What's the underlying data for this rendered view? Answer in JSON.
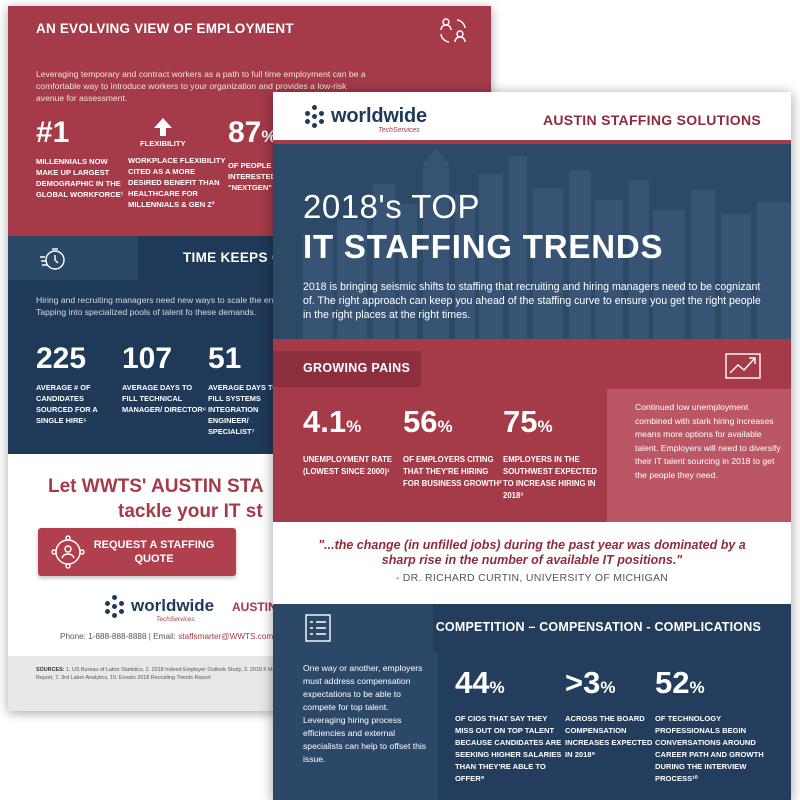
{
  "back": {
    "header_title": "AN EVOLVING VIEW OF EMPLOYMENT",
    "intro": "Leveraging temporary and contract workers as a path to full time employment can be a comfortable way to introduce workers to your organization and provides a low-risk avenue for assessment.",
    "stats": [
      {
        "num": "#1",
        "label": "MILLENNIALS NOW MAKE UP LARGEST DEMOGRAPHIC IN THE GLOBAL WORKFORCE¹"
      },
      {
        "title": "FLEXIBILITY",
        "label": "WORKPLACE FLEXIBILITY CITED AS A MORE DESIRED BENEFIT THAN HEALTHCARE FOR MILLENNIALS & GEN Z²"
      },
      {
        "num": "87",
        "pct": "%",
        "label": "OF PEOPLE IN THE U.S. INTERESTED IN GIG OR \"NEXTGEN\" WO"
      }
    ],
    "time_title": "TIME KEEPS ON TI",
    "time_intro": "Hiring and recruiting managers need new ways to scale the en sourcing new hires. Tapping into specialized pools of talent fo these demands.",
    "time_stats": [
      {
        "num": "225",
        "label": "AVERAGE # OF CANDIDATES SOURCED FOR A SINGLE HIRE⁵"
      },
      {
        "num": "107",
        "label": "AVERAGE DAYS TO FILL TECHNICAL MANAGER/ DIRECTOR⁶"
      },
      {
        "num": "51",
        "label": "AVERAGE DAYS TO FILL SYSTEMS INTEGRATION ENGINEER/ SPECIALIST⁷"
      }
    ],
    "cta_line1": "Let WWTS' AUSTIN STA",
    "cta_line2": "tackle your IT st",
    "button_label": "REQUEST A STAFFING QUOTE",
    "logo_text": "worldwide",
    "logo_sub": "TechServices",
    "austin_text": "AUSTIN",
    "phone": "Phone: 1-888-888-8888",
    "email_label": "| Email:",
    "email": "staffsmarter@WWTS.com",
    "sources_label": "SOURCES:",
    "sources_text": "1. US Bureau of Labor Statistics, 2. 2018 Indeed Employer Outlook Study, 3. 2018 F Management Report, 5. 2018 Work for Me Study, 6. Manpower NextGen Work Report, 7. 3rd Labor Analytics, 10. Envato 2018 Recruiting Trends Report"
  },
  "front": {
    "logo_text": "worldwide",
    "logo_sub": "TechServices",
    "header": "AUSTIN STAFFING SOLUTIONS",
    "title1": "2018's TOP",
    "title2": "IT STAFFING TRENDS",
    "intro": "2018 is bringing seismic shifts to staffing that recruiting and hiring managers need to be cognizant of. The right approach can keep you ahead of the staffing curve to ensure you get the right people in the right places at the right times.",
    "growing": {
      "title": "GROWING PAINS",
      "stats": [
        {
          "num": "4.1",
          "pct": "%",
          "label": "UNEMPLOYMENT RATE (LOWEST SINCE 2000)¹"
        },
        {
          "num": "56",
          "pct": "%",
          "label": "OF EMPLOYERS CITING THAT THEY'RE HIRING FOR BUSINESS GROWTH²"
        },
        {
          "num": "75",
          "pct": "%",
          "label": "EMPLOYERS IN THE SOUTHWEST EXPECTED TO INCREASE HIRING IN 2018³"
        }
      ],
      "side": "Continued low unemployment combined with stark hiring increases means more options for available talent. Employers will need to diversify their IT talent sourcing in 2018 to get the people they need."
    },
    "quote": "\"...the change (in unfilled jobs) during the past year was dominated by a sharp rise in the number of available IT positions.\"",
    "quote_author": "- DR. RICHARD CURTIN, UNIVERSITY OF MICHIGAN",
    "comp": {
      "title": "COMPETITION – COMPENSATION - COMPLICATIONS",
      "side": "One way or another, employers must address compensation expectations to be able to compete for top talent. Leveraging hiring process efficiencies and external specialists can help to offset this issue.",
      "stats": [
        {
          "num": "44",
          "pct": "%",
          "label": "OF CIOS THAT SAY THEY MISS OUT ON TOP TALENT BECAUSE CANDIDATES ARE SEEKING HIGHER SALARIES THAN THEY'RE ABLE TO OFFER⁸"
        },
        {
          "num": ">3",
          "pct": "%",
          "label": "ACROSS THE BOARD COMPENSATION INCREASES EXPECTED IN 2018⁹"
        },
        {
          "num": "52",
          "pct": "%",
          "label": "OF TECHNOLOGY PROFESSIONALS BEGIN CONVERSATIONS AROUND CAREER PATH AND GROWTH DURING THE INTERVIEW PROCESS¹⁰"
        }
      ]
    }
  }
}
